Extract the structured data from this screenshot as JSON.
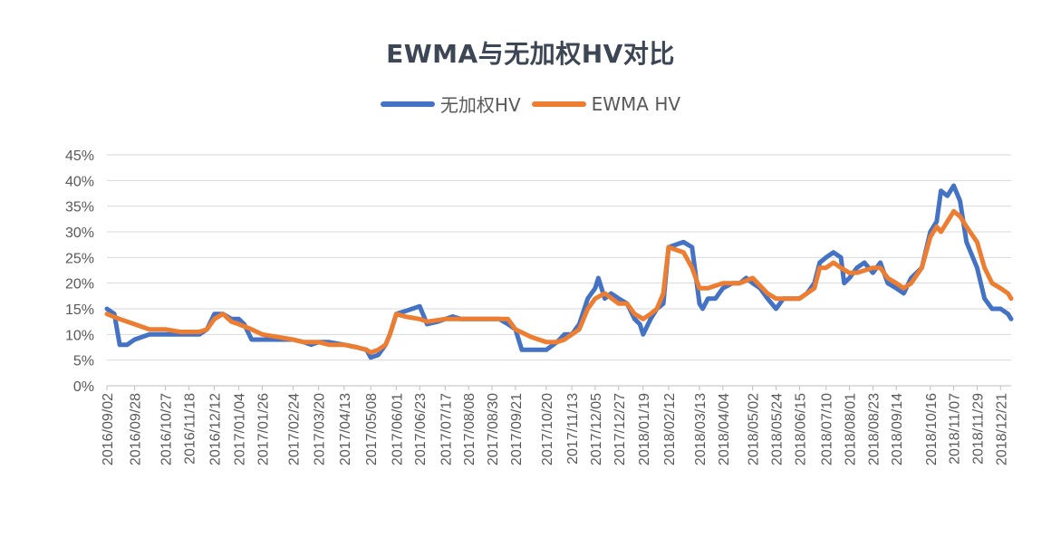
{
  "chart_data": {
    "type": "line",
    "title": "EWMA与无加权HV对比",
    "yaxis": {
      "range": [
        0,
        0.45
      ],
      "ticks": [
        "0%",
        "5%",
        "10%",
        "15%",
        "20%",
        "25%",
        "30%",
        "35%",
        "40%",
        "45%"
      ]
    },
    "xaxis": {
      "range": [
        "2016/09/02",
        "2018/12/31"
      ],
      "tick_labels": [
        "2016/09/02",
        "2016/09/28",
        "2016/10/27",
        "2016/11/18",
        "2016/12/12",
        "2017/01/04",
        "2017/01/26",
        "2017/02/24",
        "2017/03/20",
        "2017/04/13",
        "2017/05/08",
        "2017/06/01",
        "2017/06/23",
        "2017/07/17",
        "2017/08/08",
        "2017/08/30",
        "2017/09/21",
        "2017/10/20",
        "2017/11/13",
        "2017/12/05",
        "2017/12/27",
        "2018/01/19",
        "2018/02/12",
        "2018/03/13",
        "2018/04/04",
        "2018/05/02",
        "2018/05/24",
        "2018/06/15",
        "2018/07/10",
        "2018/08/01",
        "2018/08/23",
        "2018/09/14",
        "2018/10/16",
        "2018/11/07",
        "2018/11/29",
        "2018/12/21"
      ]
    },
    "grid": true,
    "legend_position": "top",
    "series": [
      {
        "name": "无加权HV",
        "color": "#4472C4",
        "x": [
          "2016/09/02",
          "2016/09/09",
          "2016/09/14",
          "2016/09/21",
          "2016/09/28",
          "2016/10/12",
          "2016/10/27",
          "2016/11/10",
          "2016/11/18",
          "2016/11/28",
          "2016/12/05",
          "2016/12/12",
          "2016/12/20",
          "2016/12/28",
          "2017/01/04",
          "2017/01/09",
          "2017/01/16",
          "2017/01/26",
          "2017/02/10",
          "2017/02/24",
          "2017/03/06",
          "2017/03/13",
          "2017/03/20",
          "2017/03/30",
          "2017/04/13",
          "2017/04/25",
          "2017/05/04",
          "2017/05/08",
          "2017/05/15",
          "2017/05/22",
          "2017/05/26",
          "2017/06/01",
          "2017/06/09",
          "2017/06/16",
          "2017/06/23",
          "2017/06/30",
          "2017/07/10",
          "2017/07/17",
          "2017/07/24",
          "2017/08/01",
          "2017/08/08",
          "2017/08/15",
          "2017/08/22",
          "2017/08/30",
          "2017/09/06",
          "2017/09/14",
          "2017/09/21",
          "2017/09/27",
          "2017/10/12",
          "2017/10/20",
          "2017/10/30",
          "2017/11/06",
          "2017/11/13",
          "2017/11/20",
          "2017/11/28",
          "2017/12/05",
          "2017/12/08",
          "2017/12/14",
          "2017/12/20",
          "2017/12/27",
          "2018/01/04",
          "2018/01/11",
          "2018/01/16",
          "2018/01/19",
          "2018/01/26",
          "2018/02/01",
          "2018/02/07",
          "2018/02/12",
          "2018/02/26",
          "2018/03/06",
          "2018/03/13",
          "2018/03/16",
          "2018/03/21",
          "2018/03/28",
          "2018/04/04",
          "2018/04/13",
          "2018/04/20",
          "2018/04/26",
          "2018/05/02",
          "2018/05/09",
          "2018/05/16",
          "2018/05/24",
          "2018/05/31",
          "2018/06/08",
          "2018/06/15",
          "2018/06/22",
          "2018/06/29",
          "2018/07/04",
          "2018/07/10",
          "2018/07/17",
          "2018/07/24",
          "2018/07/27",
          "2018/08/01",
          "2018/08/08",
          "2018/08/15",
          "2018/08/23",
          "2018/08/30",
          "2018/09/06",
          "2018/09/14",
          "2018/09/21",
          "2018/09/28",
          "2018/10/08",
          "2018/10/16",
          "2018/10/22",
          "2018/10/26",
          "2018/11/01",
          "2018/11/07",
          "2018/11/13",
          "2018/11/19",
          "2018/11/29",
          "2018/12/06",
          "2018/12/13",
          "2018/12/21",
          "2018/12/28",
          "2018/12/31"
        ],
        "y": [
          0.15,
          0.14,
          0.08,
          0.08,
          0.09,
          0.1,
          0.1,
          0.1,
          0.1,
          0.1,
          0.11,
          0.14,
          0.14,
          0.13,
          0.13,
          0.12,
          0.09,
          0.09,
          0.09,
          0.09,
          0.085,
          0.08,
          0.085,
          0.085,
          0.08,
          0.075,
          0.07,
          0.055,
          0.06,
          0.08,
          0.1,
          0.14,
          0.145,
          0.15,
          0.155,
          0.12,
          0.125,
          0.13,
          0.135,
          0.13,
          0.13,
          0.13,
          0.13,
          0.13,
          0.13,
          0.12,
          0.11,
          0.07,
          0.07,
          0.07,
          0.085,
          0.1,
          0.1,
          0.12,
          0.17,
          0.19,
          0.21,
          0.17,
          0.18,
          0.17,
          0.16,
          0.13,
          0.12,
          0.1,
          0.13,
          0.15,
          0.16,
          0.27,
          0.28,
          0.27,
          0.16,
          0.15,
          0.17,
          0.17,
          0.19,
          0.2,
          0.2,
          0.21,
          0.2,
          0.19,
          0.17,
          0.15,
          0.17,
          0.17,
          0.17,
          0.18,
          0.2,
          0.24,
          0.25,
          0.26,
          0.25,
          0.2,
          0.21,
          0.23,
          0.24,
          0.22,
          0.24,
          0.2,
          0.19,
          0.18,
          0.21,
          0.23,
          0.3,
          0.32,
          0.38,
          0.37,
          0.39,
          0.36,
          0.28,
          0.23,
          0.17,
          0.15,
          0.15,
          0.14,
          0.13
        ],
        "labels": [
          "(Blue series in legend)"
        ]
      },
      {
        "name": "EWMA HV",
        "color": "#ED7D31",
        "x": [
          "2016/09/02",
          "2016/09/14",
          "2016/09/28",
          "2016/10/12",
          "2016/10/27",
          "2016/11/10",
          "2016/11/18",
          "2016/11/28",
          "2016/12/05",
          "2016/12/12",
          "2016/12/20",
          "2016/12/28",
          "2017/01/04",
          "2017/01/16",
          "2017/01/26",
          "2017/02/10",
          "2017/02/24",
          "2017/03/06",
          "2017/03/20",
          "2017/03/30",
          "2017/04/13",
          "2017/04/25",
          "2017/05/04",
          "2017/05/08",
          "2017/05/15",
          "2017/05/22",
          "2017/05/26",
          "2017/06/01",
          "2017/06/09",
          "2017/06/23",
          "2017/06/30",
          "2017/07/17",
          "2017/08/01",
          "2017/08/08",
          "2017/08/22",
          "2017/08/30",
          "2017/09/14",
          "2017/09/21",
          "2017/10/06",
          "2017/10/20",
          "2017/10/30",
          "2017/11/06",
          "2017/11/13",
          "2017/11/20",
          "2017/11/28",
          "2017/12/05",
          "2017/12/14",
          "2017/12/27",
          "2018/01/04",
          "2018/01/11",
          "2018/01/19",
          "2018/01/26",
          "2018/02/01",
          "2018/02/07",
          "2018/02/12",
          "2018/02/26",
          "2018/03/06",
          "2018/03/13",
          "2018/03/21",
          "2018/04/04",
          "2018/04/20",
          "2018/05/02",
          "2018/05/16",
          "2018/05/24",
          "2018/06/01",
          "2018/06/15",
          "2018/06/29",
          "2018/07/04",
          "2018/07/10",
          "2018/07/17",
          "2018/07/24",
          "2018/08/01",
          "2018/08/08",
          "2018/08/23",
          "2018/08/30",
          "2018/09/06",
          "2018/09/14",
          "2018/09/21",
          "2018/09/28",
          "2018/10/08",
          "2018/10/16",
          "2018/10/22",
          "2018/10/26",
          "2018/11/01",
          "2018/11/07",
          "2018/11/13",
          "2018/11/19",
          "2018/11/29",
          "2018/12/06",
          "2018/12/13",
          "2018/12/21",
          "2018/12/28",
          "2018/12/31"
        ],
        "y": [
          0.14,
          0.13,
          0.12,
          0.11,
          0.11,
          0.105,
          0.105,
          0.105,
          0.11,
          0.13,
          0.14,
          0.125,
          0.12,
          0.11,
          0.1,
          0.095,
          0.09,
          0.085,
          0.085,
          0.08,
          0.08,
          0.075,
          0.07,
          0.065,
          0.07,
          0.08,
          0.1,
          0.14,
          0.135,
          0.13,
          0.125,
          0.13,
          0.13,
          0.13,
          0.13,
          0.13,
          0.13,
          0.11,
          0.095,
          0.085,
          0.085,
          0.09,
          0.1,
          0.11,
          0.15,
          0.17,
          0.18,
          0.16,
          0.16,
          0.14,
          0.13,
          0.14,
          0.15,
          0.18,
          0.27,
          0.26,
          0.23,
          0.19,
          0.19,
          0.2,
          0.2,
          0.21,
          0.18,
          0.17,
          0.17,
          0.17,
          0.19,
          0.23,
          0.23,
          0.24,
          0.23,
          0.22,
          0.22,
          0.23,
          0.23,
          0.21,
          0.2,
          0.19,
          0.2,
          0.23,
          0.29,
          0.31,
          0.3,
          0.32,
          0.34,
          0.33,
          0.31,
          0.28,
          0.23,
          0.2,
          0.19,
          0.18,
          0.17
        ]
      }
    ]
  }
}
